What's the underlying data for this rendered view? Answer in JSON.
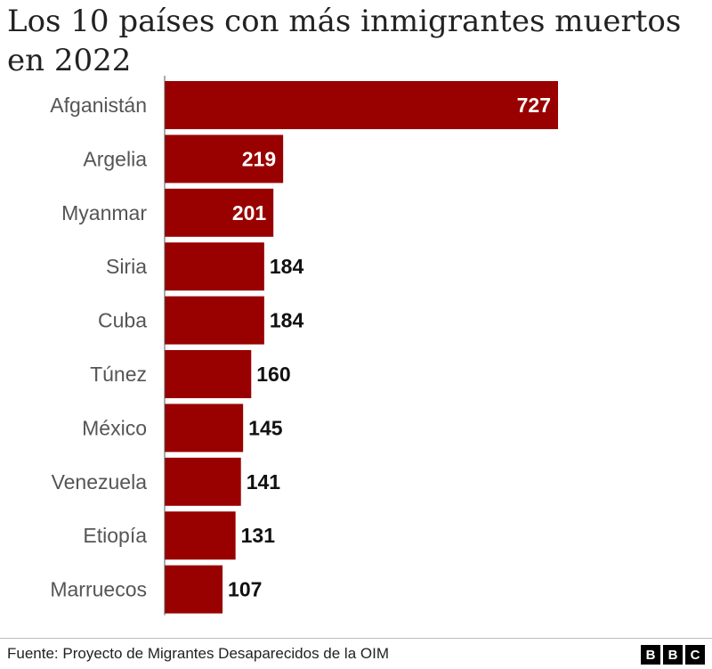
{
  "title": "Los 10 países con más inmigrantes muertos en 2022",
  "source": "Fuente: Proyecto de Migrantes Desaparecidos de la OIM",
  "logo": [
    "B",
    "B",
    "C"
  ],
  "colors": {
    "bar": "#990000",
    "inside_label": "#ffffff",
    "outside_label": "#111111"
  },
  "chart_data": {
    "type": "bar",
    "orientation": "horizontal",
    "title": "Los 10 países con más inmigrantes muertos en 2022",
    "categories": [
      "Afganistán",
      "Argelia",
      "Myanmar",
      "Siria",
      "Cuba",
      "Túnez",
      "México",
      "Venezuela",
      "Etiopía",
      "Marruecos"
    ],
    "values": [
      727,
      219,
      201,
      184,
      184,
      160,
      145,
      141,
      131,
      107
    ],
    "xlim": [
      0,
      727
    ],
    "grid": false,
    "legend": "none"
  }
}
